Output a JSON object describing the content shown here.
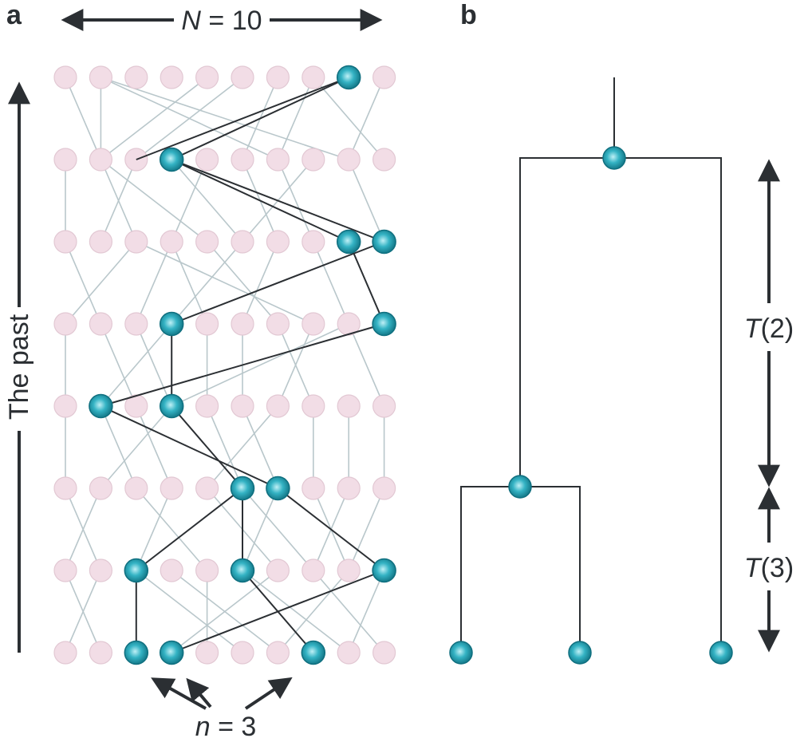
{
  "panel_a": {
    "letter": "a",
    "population_label": {
      "var": "N",
      "eq": " = 10"
    },
    "time_axis_label": "The past",
    "sample_label": {
      "var": "n",
      "eq": " = 3"
    },
    "generations": 8,
    "individuals_per_generation": 10,
    "grid_edges": [
      [
        [
          0,
          0
        ],
        [
          1,
          1
        ]
      ],
      [
        [
          1,
          0
        ],
        [
          1,
          1
        ]
      ],
      [
        [
          1,
          0
        ],
        [
          6,
          1
        ]
      ],
      [
        [
          1,
          0
        ],
        [
          8,
          1
        ]
      ],
      [
        [
          4,
          0
        ],
        [
          1,
          1
        ]
      ],
      [
        [
          5,
          0
        ],
        [
          2,
          1
        ]
      ],
      [
        [
          6,
          0
        ],
        [
          5,
          1
        ]
      ],
      [
        [
          7,
          0
        ],
        [
          6,
          1
        ]
      ],
      [
        [
          7,
          0
        ],
        [
          9,
          1
        ]
      ],
      [
        [
          9,
          0
        ],
        [
          8,
          1
        ]
      ],
      [
        [
          0,
          1
        ],
        [
          0,
          2
        ]
      ],
      [
        [
          1,
          1
        ],
        [
          2,
          2
        ]
      ],
      [
        [
          1,
          1
        ],
        [
          4,
          2
        ]
      ],
      [
        [
          2,
          1
        ],
        [
          1,
          2
        ]
      ],
      [
        [
          3,
          1
        ],
        [
          5,
          2
        ]
      ],
      [
        [
          4,
          1
        ],
        [
          3,
          2
        ]
      ],
      [
        [
          5,
          1
        ],
        [
          6,
          2
        ]
      ],
      [
        [
          6,
          1
        ],
        [
          7,
          2
        ]
      ],
      [
        [
          7,
          1
        ],
        [
          5,
          2
        ]
      ],
      [
        [
          8,
          1
        ],
        [
          9,
          2
        ]
      ],
      [
        [
          0,
          2
        ],
        [
          1,
          3
        ]
      ],
      [
        [
          2,
          2
        ],
        [
          0,
          3
        ]
      ],
      [
        [
          2,
          2
        ],
        [
          7,
          3
        ]
      ],
      [
        [
          3,
          2
        ],
        [
          2,
          3
        ]
      ],
      [
        [
          3,
          2
        ],
        [
          4,
          3
        ]
      ],
      [
        [
          4,
          2
        ],
        [
          6,
          3
        ]
      ],
      [
        [
          5,
          2
        ],
        [
          3,
          3
        ]
      ],
      [
        [
          6,
          2
        ],
        [
          5,
          3
        ]
      ],
      [
        [
          7,
          2
        ],
        [
          8,
          3
        ]
      ],
      [
        [
          8,
          2
        ],
        [
          9,
          3
        ]
      ],
      [
        [
          0,
          3
        ],
        [
          0,
          4
        ]
      ],
      [
        [
          1,
          3
        ],
        [
          2,
          4
        ]
      ],
      [
        [
          2,
          3
        ],
        [
          3,
          4
        ]
      ],
      [
        [
          3,
          3
        ],
        [
          1,
          4
        ]
      ],
      [
        [
          4,
          3
        ],
        [
          4,
          4
        ]
      ],
      [
        [
          5,
          3
        ],
        [
          5,
          4
        ]
      ],
      [
        [
          6,
          3
        ],
        [
          7,
          4
        ]
      ],
      [
        [
          7,
          3
        ],
        [
          6,
          4
        ]
      ],
      [
        [
          8,
          3
        ],
        [
          3,
          4
        ]
      ],
      [
        [
          8,
          3
        ],
        [
          9,
          4
        ]
      ],
      [
        [
          0,
          4
        ],
        [
          0,
          5
        ]
      ],
      [
        [
          1,
          4
        ],
        [
          2,
          5
        ]
      ],
      [
        [
          2,
          4
        ],
        [
          3,
          5
        ]
      ],
      [
        [
          4,
          4
        ],
        [
          5,
          5
        ]
      ],
      [
        [
          5,
          4
        ],
        [
          6,
          5
        ]
      ],
      [
        [
          6,
          4
        ],
        [
          4,
          5
        ]
      ],
      [
        [
          7,
          4
        ],
        [
          7,
          5
        ]
      ],
      [
        [
          8,
          4
        ],
        [
          8,
          5
        ]
      ],
      [
        [
          9,
          4
        ],
        [
          9,
          5
        ]
      ],
      [
        [
          3,
          4
        ],
        [
          1,
          5
        ]
      ],
      [
        [
          0,
          5
        ],
        [
          1,
          6
        ]
      ],
      [
        [
          1,
          5
        ],
        [
          0,
          6
        ]
      ],
      [
        [
          2,
          5
        ],
        [
          4,
          6
        ]
      ],
      [
        [
          3,
          5
        ],
        [
          2,
          6
        ]
      ],
      [
        [
          4,
          5
        ],
        [
          6,
          6
        ]
      ],
      [
        [
          5,
          5
        ],
        [
          7,
          6
        ]
      ],
      [
        [
          6,
          5
        ],
        [
          5,
          6
        ]
      ],
      [
        [
          7,
          5
        ],
        [
          8,
          6
        ]
      ],
      [
        [
          8,
          5
        ],
        [
          7,
          6
        ]
      ],
      [
        [
          9,
          5
        ],
        [
          8,
          6
        ]
      ],
      [
        [
          0,
          6
        ],
        [
          1,
          7
        ]
      ],
      [
        [
          1,
          6
        ],
        [
          0,
          7
        ]
      ],
      [
        [
          2,
          6
        ],
        [
          5,
          7
        ]
      ],
      [
        [
          3,
          6
        ],
        [
          6,
          7
        ]
      ],
      [
        [
          4,
          6
        ],
        [
          4,
          7
        ]
      ],
      [
        [
          5,
          6
        ],
        [
          8,
          7
        ]
      ],
      [
        [
          6,
          6
        ],
        [
          3,
          7
        ]
      ],
      [
        [
          7,
          6
        ],
        [
          9,
          7
        ]
      ],
      [
        [
          8,
          6
        ],
        [
          6,
          7
        ]
      ],
      [
        [
          9,
          6
        ],
        [
          8,
          7
        ]
      ]
    ],
    "lineage_edges": [
      [
        [
          8,
          0
        ],
        [
          3,
          1
        ]
      ],
      [
        [
          8,
          0
        ],
        [
          2,
          1
        ]
      ],
      [
        [
          3,
          1
        ],
        [
          8,
          2
        ]
      ],
      [
        [
          3,
          1
        ],
        [
          9,
          2
        ]
      ],
      [
        [
          9,
          2
        ],
        [
          3,
          3
        ]
      ],
      [
        [
          8,
          2
        ],
        [
          9,
          3
        ]
      ],
      [
        [
          3,
          3
        ],
        [
          3,
          4
        ]
      ],
      [
        [
          9,
          3
        ],
        [
          1,
          4
        ]
      ],
      [
        [
          3,
          4
        ],
        [
          5,
          5
        ]
      ],
      [
        [
          1,
          4
        ],
        [
          6,
          5
        ]
      ],
      [
        [
          5,
          5
        ],
        [
          2,
          6
        ]
      ],
      [
        [
          5,
          5
        ],
        [
          5,
          6
        ]
      ],
      [
        [
          6,
          5
        ],
        [
          9,
          6
        ]
      ],
      [
        [
          2,
          6
        ],
        [
          2,
          7
        ]
      ],
      [
        [
          5,
          6
        ],
        [
          7,
          7
        ]
      ],
      [
        [
          9,
          6
        ],
        [
          3,
          7
        ]
      ]
    ],
    "highlighted_nodes": [
      [
        8,
        0
      ],
      [
        3,
        1
      ],
      [
        8,
        2
      ],
      [
        9,
        2
      ],
      [
        3,
        3
      ],
      [
        9,
        3
      ],
      [
        1,
        4
      ],
      [
        3,
        4
      ],
      [
        5,
        5
      ],
      [
        6,
        5
      ],
      [
        2,
        6
      ],
      [
        5,
        6
      ],
      [
        9,
        6
      ],
      [
        2,
        7
      ],
      [
        3,
        7
      ],
      [
        7,
        7
      ]
    ]
  },
  "panel_b": {
    "letter": "b",
    "t2_label": {
      "var": "T",
      "arg": "(2)"
    },
    "t3_label": {
      "var": "T",
      "arg": "(3)"
    }
  },
  "colors": {
    "node_fill": "#f2dde6",
    "node_stroke": "#e2c8d3",
    "grid_line": "#b9c7cb",
    "lineage_line": "#2b2f33",
    "lineage_node": "#1f9cae",
    "lineage_node_dark": "#0f6f7f",
    "lineage_node_light": "#bff0f6",
    "text": "#2b2f33"
  }
}
